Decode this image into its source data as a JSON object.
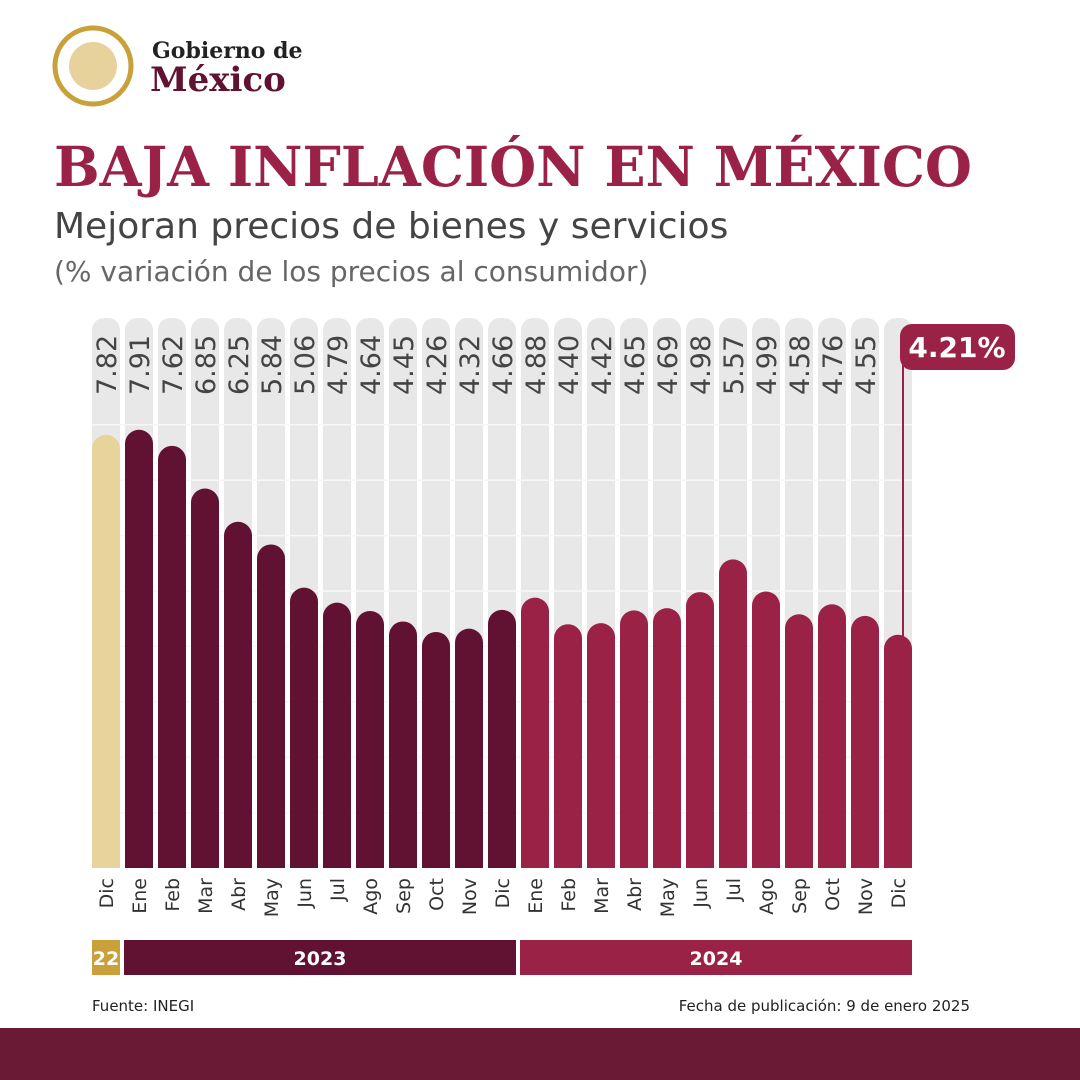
{
  "header": {
    "line1": "Gobierno de",
    "line2": "México"
  },
  "chart_data": {
    "type": "bar",
    "title": "BAJA INFLACIÓN EN MÉXICO",
    "subtitle": "Mejoran precios de bienes y servicios",
    "note": "(% variación de los precios al consumidor)",
    "source": "Fuente: INEGI",
    "date": "Fecha de publicación: 9 de enero 2025",
    "categories": [
      "Dic",
      "Ene",
      "Feb",
      "Mar",
      "Abr",
      "May",
      "Jun",
      "Jul",
      "Ago",
      "Sep",
      "Oct",
      "Nov",
      "Dic",
      "Ene",
      "Feb",
      "Mar",
      "Abr",
      "May",
      "Jun",
      "Jul",
      "Ago",
      "Sep",
      "Oct",
      "Nov",
      "Dic"
    ],
    "series": [
      {
        "name": "22",
        "color": "#e8d49a",
        "legend_color": "#c9a03a",
        "values": [
          7.82,
          null,
          null,
          null,
          null,
          null,
          null,
          null,
          null,
          null,
          null,
          null,
          null,
          null,
          null,
          null,
          null,
          null,
          null,
          null,
          null,
          null,
          null,
          null,
          null
        ],
        "value_labels": [
          "7.82",
          null,
          null,
          null,
          null,
          null,
          null,
          null,
          null,
          null,
          null,
          null,
          null,
          null,
          null,
          null,
          null,
          null,
          null,
          null,
          null,
          null,
          null,
          null,
          null
        ]
      },
      {
        "name": "2023",
        "color": "#611232",
        "legend_color": "#611232",
        "values": [
          null,
          7.91,
          7.62,
          6.85,
          6.25,
          5.84,
          5.06,
          4.79,
          4.64,
          4.45,
          4.26,
          4.32,
          4.66,
          null,
          null,
          null,
          null,
          null,
          null,
          null,
          null,
          null,
          null,
          null,
          null
        ],
        "value_labels": [
          null,
          "7.91",
          "7.62",
          "6.85",
          "6.25",
          "5.84",
          "5.06",
          "4.79",
          "4.64",
          "4.45",
          "4.26",
          "4.32",
          "4.66",
          null,
          null,
          null,
          null,
          null,
          null,
          null,
          null,
          null,
          null,
          null,
          null
        ]
      },
      {
        "name": "2024",
        "color": "#9b2247",
        "legend_color": "#9b2247",
        "values": [
          null,
          null,
          null,
          null,
          null,
          null,
          null,
          null,
          null,
          null,
          null,
          null,
          null,
          4.88,
          4.4,
          4.42,
          4.65,
          4.69,
          4.98,
          5.57,
          4.99,
          4.58,
          4.76,
          4.55,
          4.21
        ],
        "value_labels": [
          null,
          null,
          null,
          null,
          null,
          null,
          null,
          null,
          null,
          null,
          null,
          null,
          null,
          "4.88",
          "4.40",
          "4.42",
          "4.65",
          "4.69",
          "4.98",
          "5.57",
          "4.99",
          "4.58",
          "4.76",
          "4.55",
          "4.21%"
        ]
      }
    ],
    "ylim": [
      0,
      10
    ],
    "yticks": [
      1,
      2,
      3,
      4,
      5,
      6,
      7,
      8
    ],
    "grid": true
  }
}
